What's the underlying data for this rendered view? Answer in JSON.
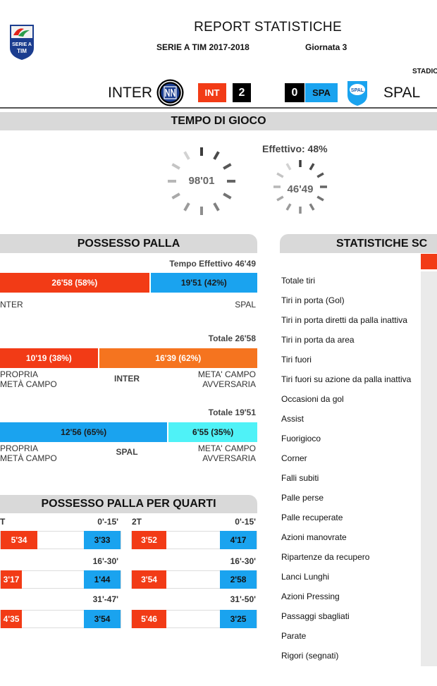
{
  "header": {
    "logo_text_top": "SERIE A",
    "logo_text_bottom": "TIM",
    "title": "REPORT STATISTICHE",
    "season": "SERIE A TIM 2017-2018",
    "round": "Giornata 3",
    "stadium_label": "STADIO"
  },
  "match": {
    "home_name": "INTER",
    "home_abbr": "INT",
    "home_score": "2",
    "away_score": "0",
    "away_abbr": "SPA",
    "away_name": "SPAL",
    "away_crest_text": "SPAL",
    "colors": {
      "home": "#f23b16",
      "away": "#1aa3ef"
    }
  },
  "tempo": {
    "title": "TEMPO DI GIOCO",
    "total": "98'01",
    "effective_label": "Effettivo: 48%",
    "effective": "46'49"
  },
  "possesso": {
    "title": "POSSESSO PALLA",
    "overall": {
      "caption": "Tempo Effettivo 46'49",
      "home_label": "26'58 (58%)",
      "away_label": "19'51 (42%)",
      "home_share": 58,
      "left_team": "NTER",
      "right_team": "SPAL"
    },
    "home_split": {
      "caption": "Totale 26'58",
      "own_label": "10'19 (38%)",
      "opp_label": "16'39 (62%)",
      "own_share": 38,
      "left_caption_1": "PROPRIA",
      "left_caption_2": "METÀ CAMPO",
      "team": "INTER",
      "right_caption_1": "META' CAMPO",
      "right_caption_2": "AVVERSARIA"
    },
    "away_split": {
      "caption": "Totale 19'51",
      "own_label": "12'56 (65%)",
      "opp_label": "6'55 (35%)",
      "own_share": 65,
      "left_caption_1": "PROPRIA",
      "left_caption_2": "METÀ CAMPO",
      "team": "SPAL",
      "right_caption_1": "META' CAMPO",
      "right_caption_2": "AVVERSARIA"
    }
  },
  "quarti": {
    "title": "POSSESSO PALLA PER QUARTI",
    "first_half_label": "T",
    "second_half_label": "2T",
    "rows": [
      {
        "left_range": "0'-15'",
        "right_range": "0'-15'",
        "l_home": "5'34",
        "l_away": "3'33",
        "r_home": "3'52",
        "r_away": "4'17"
      },
      {
        "left_range": "16'-30'",
        "right_range": "16'-30'",
        "l_home": "3'17",
        "l_away": "1'44",
        "r_home": "3'54",
        "r_away": "2'58"
      },
      {
        "left_range": "31'-47'",
        "right_range": "31'-50'",
        "l_home": "4'35",
        "l_away": "3'54",
        "r_home": "5'46",
        "r_away": "3'25"
      }
    ]
  },
  "statistiche": {
    "title": "STATISTICHE SC",
    "rows": [
      "Totale tiri",
      "Tiri in porta (Gol)",
      "Tiri in porta diretti da palla inattiva",
      "Tiri in porta da area",
      "Tiri fuori",
      "Tiri fuori su azione da palla inattiva",
      "Occasioni da gol",
      "Assist",
      "Fuorigioco",
      "Corner",
      "Falli subiti",
      "Palle perse",
      "Palle recuperate",
      "Azioni manovrate",
      "Ripartenze da recupero",
      "Lanci Lunghi",
      "Azioni Pressing",
      "Passaggi sbagliati",
      "Parate",
      "Rigori (segnati)"
    ]
  }
}
